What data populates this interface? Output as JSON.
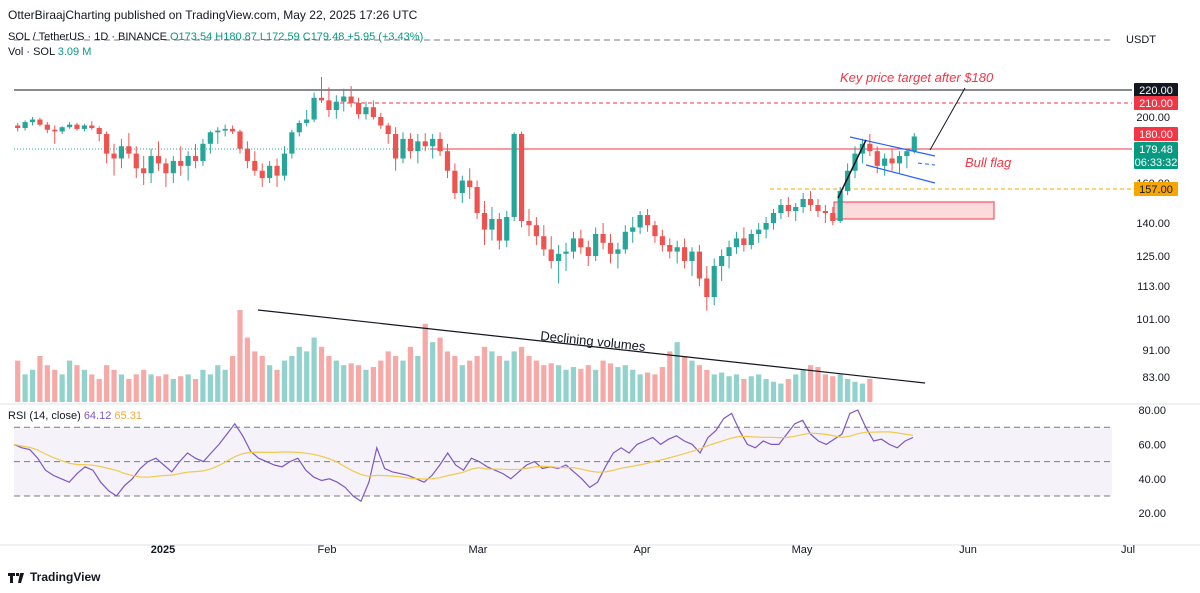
{
  "header": {
    "published": "OtterBiraajCharting published on TradingView.com, May 22, 2025 17:26 UTC",
    "symbol": "SOL / TetherUS · 1D · BINANCE",
    "open": "O173.54",
    "high": "H180.87",
    "low": "L172.59",
    "close": "C179.48",
    "change": "+5.95 (+3.43%)",
    "volume_label": "Vol · SOL",
    "volume_value": "3.09 M",
    "currency": "USDT"
  },
  "rsi": {
    "label": "RSI (14, close)",
    "value": "64.12",
    "ma_value": "65.31"
  },
  "footer": {
    "brand": "TradingView"
  },
  "colors": {
    "up": "#26a69a",
    "down": "#ef5350",
    "rsi_line": "#7e57c2",
    "rsi_ma": "#f2c94c",
    "red_level": "#f23645",
    "orange_level": "#f7a600"
  },
  "chart_data": {
    "type": "candlestick",
    "yaxis_ticks": [
      220,
      200,
      180,
      160,
      140,
      125,
      113,
      101,
      91,
      83
    ],
    "xaxis_ticks": [
      "2025",
      "Feb",
      "Mar",
      "Apr",
      "May",
      "Jun",
      "Jul"
    ],
    "price_labels": [
      {
        "value": "220.00",
        "style": "black"
      },
      {
        "value": "210.00",
        "style": "red"
      },
      {
        "value": "180.00",
        "style": "red"
      },
      {
        "value": "179.48",
        "style": "green"
      },
      {
        "value": "06:33:32",
        "style": "green"
      },
      {
        "value": "157.00",
        "style": "orange"
      }
    ],
    "annotations": [
      "Key price target after $180",
      "Bull flag",
      "Declining volumes"
    ],
    "rsi_axis": [
      80,
      60,
      40,
      20
    ],
    "rsi_axis_labels": [
      "80.00",
      "60.00",
      "40.00",
      "20.00"
    ],
    "candles": [
      [
        190,
        193,
        183,
        187
      ],
      [
        187,
        196,
        184,
        194
      ],
      [
        194,
        200,
        190,
        197
      ],
      [
        197,
        199,
        189,
        191
      ],
      [
        191,
        194,
        181,
        185
      ],
      [
        185,
        190,
        176,
        183
      ],
      [
        183,
        189,
        180,
        188
      ],
      [
        188,
        194,
        186,
        191
      ],
      [
        191,
        193,
        184,
        186
      ],
      [
        186,
        192,
        183,
        190
      ],
      [
        190,
        195,
        185,
        187
      ],
      [
        187,
        189,
        177,
        180
      ],
      [
        180,
        183,
        168,
        172
      ],
      [
        172,
        176,
        163,
        170
      ],
      [
        170,
        178,
        166,
        175
      ],
      [
        175,
        181,
        170,
        172
      ],
      [
        172,
        175,
        162,
        166
      ],
      [
        166,
        171,
        159,
        164
      ],
      [
        164,
        174,
        160,
        171
      ],
      [
        171,
        177,
        165,
        168
      ],
      [
        168,
        170,
        158,
        164
      ],
      [
        164,
        171,
        160,
        169
      ],
      [
        169,
        175,
        163,
        167
      ],
      [
        167,
        173,
        161,
        171
      ],
      [
        171,
        176,
        166,
        169
      ],
      [
        169,
        178,
        167,
        176
      ],
      [
        176,
        184,
        172,
        182
      ],
      [
        182,
        188,
        176,
        184
      ],
      [
        184,
        191,
        179,
        186
      ],
      [
        186,
        190,
        180,
        183
      ],
      [
        183,
        185,
        172,
        174
      ],
      [
        174,
        177,
        166,
        169
      ],
      [
        169,
        173,
        163,
        165
      ],
      [
        165,
        168,
        158,
        162
      ],
      [
        162,
        169,
        160,
        167
      ],
      [
        167,
        170,
        158,
        163
      ],
      [
        163,
        175,
        161,
        172
      ],
      [
        172,
        185,
        170,
        182
      ],
      [
        182,
        196,
        179,
        193
      ],
      [
        193,
        205,
        189,
        197
      ],
      [
        197,
        218,
        194,
        214
      ],
      [
        214,
        230,
        210,
        212
      ],
      [
        212,
        222,
        200,
        205
      ],
      [
        205,
        216,
        198,
        211
      ],
      [
        211,
        221,
        204,
        215
      ],
      [
        215,
        223,
        207,
        210
      ],
      [
        210,
        214,
        198,
        202
      ],
      [
        202,
        211,
        197,
        207
      ],
      [
        207,
        212,
        197,
        200
      ],
      [
        200,
        203,
        186,
        190
      ],
      [
        190,
        193,
        176,
        180
      ],
      [
        180,
        188,
        165,
        170
      ],
      [
        170,
        182,
        168,
        178
      ],
      [
        178,
        181,
        170,
        173
      ],
      [
        173,
        180,
        168,
        177
      ],
      [
        177,
        181,
        173,
        175
      ],
      [
        175,
        180,
        170,
        178
      ],
      [
        178,
        182,
        171,
        173
      ],
      [
        173,
        176,
        162,
        165
      ],
      [
        165,
        168,
        152,
        155
      ],
      [
        155,
        163,
        150,
        161
      ],
      [
        161,
        166,
        152,
        158
      ],
      [
        158,
        161,
        142,
        145
      ],
      [
        145,
        151,
        130,
        137
      ],
      [
        137,
        148,
        132,
        142
      ],
      [
        142,
        145,
        128,
        132
      ],
      [
        132,
        146,
        129,
        143
      ],
      [
        143,
        182,
        141,
        180
      ],
      [
        180,
        183,
        138,
        141
      ],
      [
        141,
        147,
        134,
        139
      ],
      [
        139,
        143,
        130,
        134
      ],
      [
        134,
        139,
        125,
        128
      ],
      [
        128,
        134,
        120,
        123
      ],
      [
        123,
        130,
        114,
        126
      ],
      [
        126,
        131,
        119,
        127
      ],
      [
        127,
        136,
        124,
        133
      ],
      [
        133,
        137,
        126,
        129
      ],
      [
        129,
        132,
        121,
        125
      ],
      [
        125,
        138,
        123,
        135
      ],
      [
        135,
        140,
        128,
        131
      ],
      [
        131,
        135,
        122,
        126
      ],
      [
        126,
        131,
        120,
        128
      ],
      [
        128,
        139,
        126,
        136
      ],
      [
        136,
        143,
        131,
        138
      ],
      [
        138,
        146,
        135,
        144
      ],
      [
        144,
        147,
        136,
        139
      ],
      [
        139,
        141,
        131,
        134
      ],
      [
        134,
        137,
        127,
        130
      ],
      [
        130,
        133,
        124,
        127
      ],
      [
        127,
        132,
        122,
        129
      ],
      [
        129,
        133,
        120,
        123
      ],
      [
        123,
        129,
        117,
        127
      ],
      [
        127,
        130,
        113,
        116
      ],
      [
        116,
        121,
        104,
        109
      ],
      [
        109,
        124,
        106,
        121
      ],
      [
        121,
        128,
        115,
        125
      ],
      [
        125,
        132,
        120,
        129
      ],
      [
        129,
        136,
        126,
        133
      ],
      [
        133,
        138,
        127,
        130
      ],
      [
        130,
        137,
        128,
        135
      ],
      [
        135,
        140,
        131,
        137
      ],
      [
        137,
        143,
        133,
        140
      ],
      [
        140,
        147,
        137,
        145
      ],
      [
        145,
        152,
        142,
        149
      ],
      [
        149,
        153,
        143,
        146
      ],
      [
        146,
        150,
        141,
        148
      ],
      [
        148,
        155,
        145,
        152
      ],
      [
        152,
        156,
        146,
        149
      ],
      [
        149,
        152,
        143,
        146
      ],
      [
        146,
        149,
        140,
        145
      ],
      [
        145,
        148,
        139,
        141
      ],
      [
        141,
        158,
        140,
        156
      ],
      [
        156,
        168,
        154,
        165
      ],
      [
        165,
        175,
        162,
        172
      ],
      [
        172,
        178,
        168,
        176
      ],
      [
        176,
        180,
        171,
        173
      ],
      [
        173,
        175,
        164,
        167
      ],
      [
        167,
        172,
        163,
        170
      ],
      [
        170,
        174,
        165,
        168
      ],
      [
        168,
        173,
        164,
        171
      ],
      [
        171,
        174,
        166,
        173
      ],
      [
        173,
        181,
        172,
        179
      ]
    ],
    "volumes": [
      0.45,
      0.3,
      0.35,
      0.5,
      0.4,
      0.35,
      0.3,
      0.45,
      0.4,
      0.35,
      0.3,
      0.25,
      0.4,
      0.35,
      0.3,
      0.25,
      0.3,
      0.35,
      0.3,
      0.28,
      0.3,
      0.25,
      0.28,
      0.3,
      0.25,
      0.35,
      0.3,
      0.4,
      0.35,
      0.5,
      1.0,
      0.7,
      0.55,
      0.5,
      0.4,
      0.35,
      0.45,
      0.5,
      0.6,
      0.55,
      0.7,
      0.6,
      0.5,
      0.45,
      0.4,
      0.42,
      0.4,
      0.35,
      0.38,
      0.45,
      0.55,
      0.5,
      0.45,
      0.6,
      0.5,
      0.85,
      0.65,
      0.7,
      0.55,
      0.5,
      0.4,
      0.45,
      0.5,
      0.6,
      0.55,
      0.5,
      0.45,
      0.55,
      0.6,
      0.5,
      0.45,
      0.4,
      0.42,
      0.4,
      0.35,
      0.38,
      0.36,
      0.4,
      0.35,
      0.45,
      0.42,
      0.38,
      0.4,
      0.35,
      0.3,
      0.32,
      0.3,
      0.38,
      0.55,
      0.65,
      0.5,
      0.45,
      0.4,
      0.35,
      0.3,
      0.32,
      0.28,
      0.3,
      0.25,
      0.28,
      0.3,
      0.25,
      0.22,
      0.2,
      0.25,
      0.3,
      0.35,
      0.4,
      0.38,
      0.3,
      0.28,
      0.3,
      0.25,
      0.22,
      0.2,
      0.25
    ],
    "rsi": [
      60,
      58,
      57,
      52,
      45,
      42,
      40,
      38,
      43,
      47,
      45,
      38,
      33,
      30,
      36,
      40,
      46,
      50,
      52,
      48,
      44,
      50,
      55,
      52,
      50,
      55,
      60,
      66,
      72,
      65,
      56,
      52,
      50,
      48,
      47,
      50,
      52,
      45,
      41,
      39,
      40,
      38,
      35,
      30,
      27,
      38,
      58,
      46,
      44,
      43,
      42,
      40,
      38,
      42,
      48,
      55,
      48,
      45,
      52,
      50,
      47,
      45,
      43,
      40,
      44,
      48,
      50,
      46,
      47,
      46,
      48,
      44,
      40,
      35,
      38,
      47,
      55,
      58,
      55,
      60,
      62,
      64,
      60,
      63,
      65,
      62,
      60,
      55,
      64,
      68,
      75,
      78,
      68,
      60,
      58,
      62,
      60,
      60,
      66,
      72,
      74,
      66,
      62,
      60,
      63,
      66,
      78,
      80,
      70,
      62,
      63,
      60,
      58,
      62,
      64
    ]
  }
}
